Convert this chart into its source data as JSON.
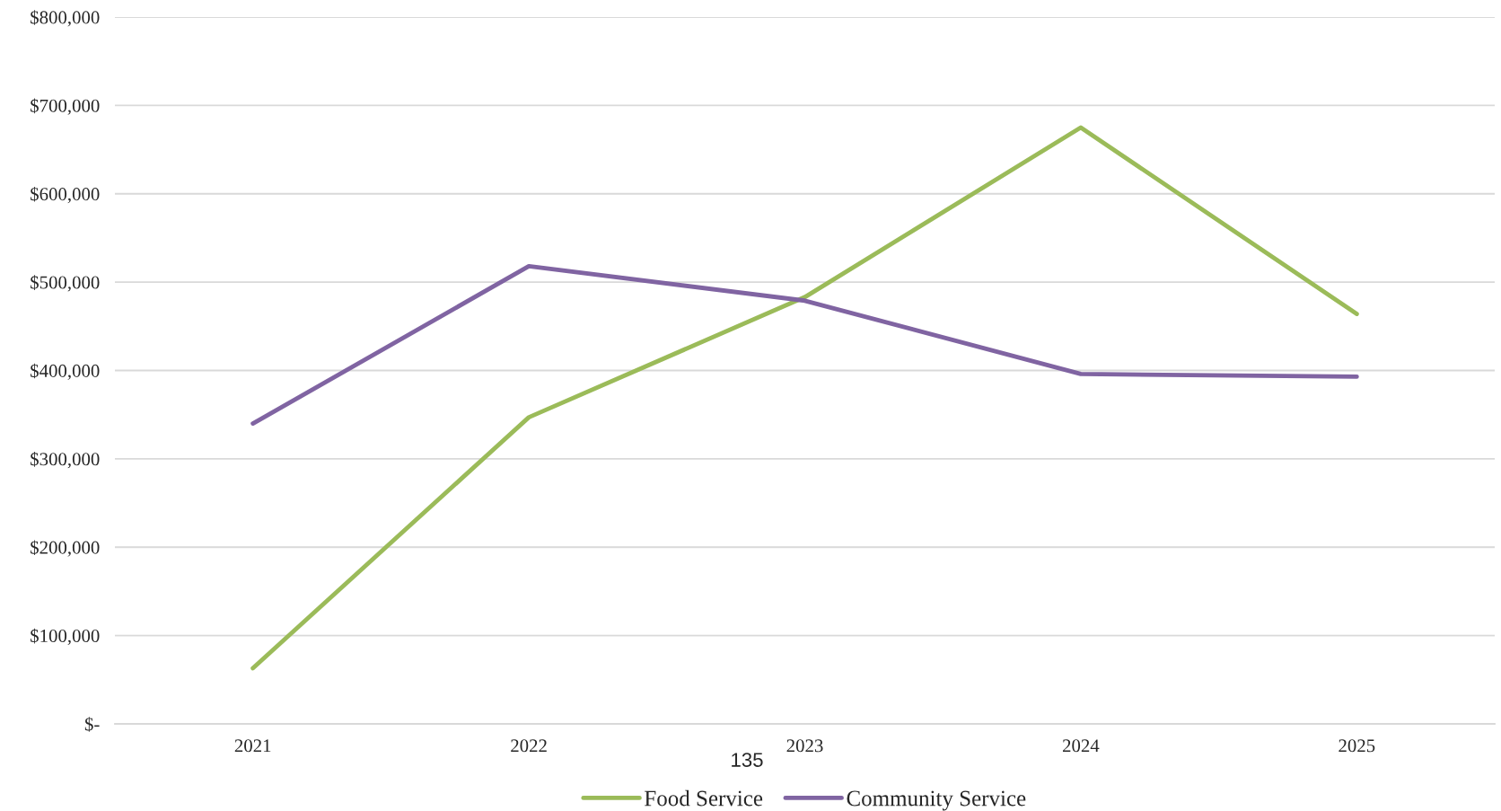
{
  "chart_data": {
    "type": "line",
    "categories": [
      "2021",
      "2022",
      "2023",
      "2024",
      "2025"
    ],
    "series": [
      {
        "name": "Food Service",
        "color": "#9bbb59",
        "values": [
          63000,
          347000,
          483000,
          675000,
          464000
        ]
      },
      {
        "name": "Community Service",
        "color": "#8064a2",
        "values": [
          340000,
          518000,
          479000,
          396000,
          393000
        ]
      }
    ],
    "ylim": [
      0,
      800000
    ],
    "yticks": [
      {
        "value": 0,
        "label": "$-"
      },
      {
        "value": 100000,
        "label": "$100,000"
      },
      {
        "value": 200000,
        "label": "$200,000"
      },
      {
        "value": 300000,
        "label": "$300,000"
      },
      {
        "value": 400000,
        "label": "$400,000"
      },
      {
        "value": 500000,
        "label": "$500,000"
      },
      {
        "value": 600000,
        "label": "$600,000"
      },
      {
        "value": 700000,
        "label": "$700,000"
      },
      {
        "value": 800000,
        "label": "$800,000"
      }
    ],
    "grid": "y",
    "legend": "bottom",
    "marker": "none",
    "line_style": "solid",
    "annotations": [
      "135"
    ]
  }
}
